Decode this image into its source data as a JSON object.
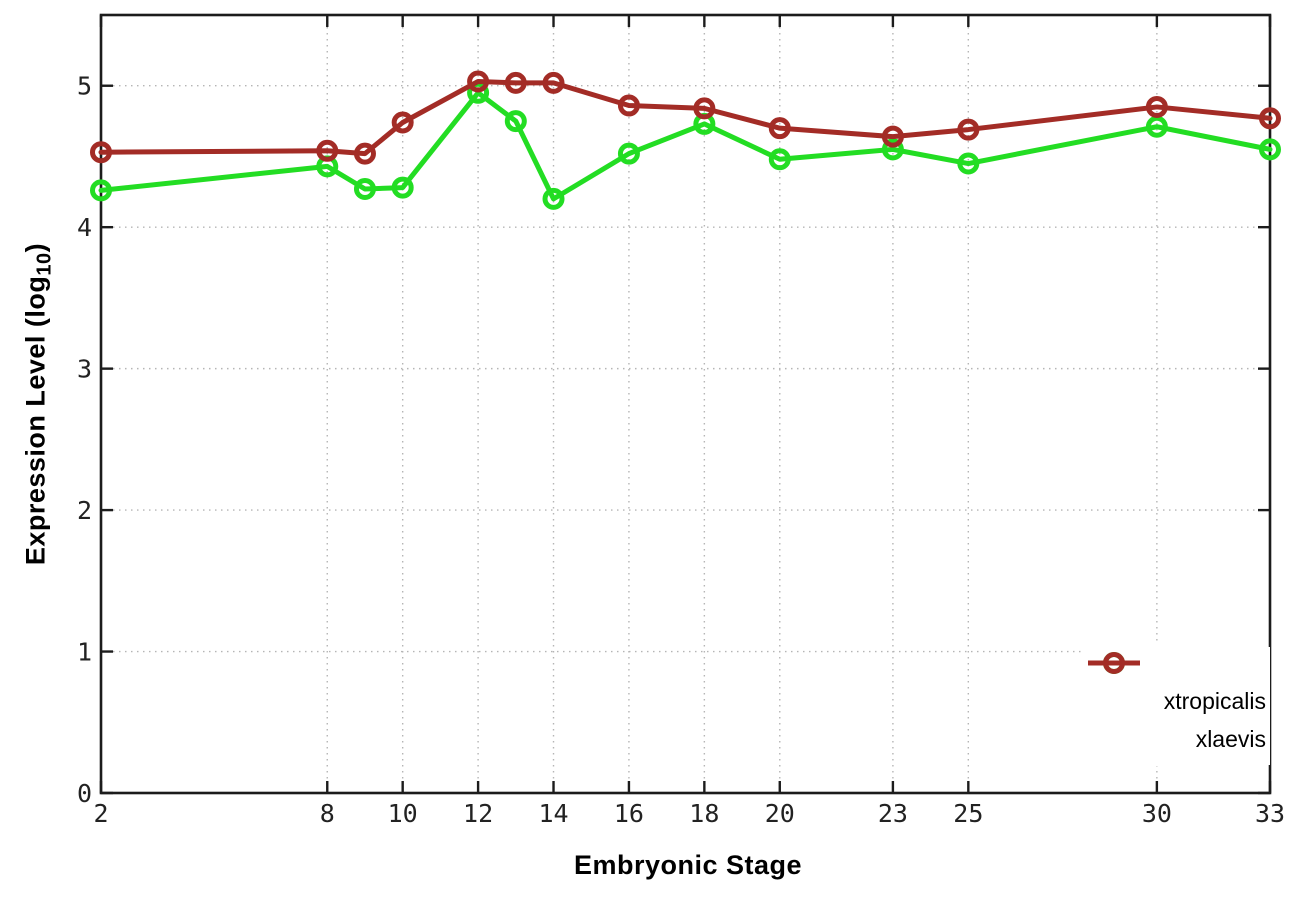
{
  "chart_data": {
    "type": "line",
    "title": "",
    "xlabel": "Embryonic Stage",
    "ylabel": {
      "prefix": "Expression Level (log",
      "sub": "10",
      "suffix": ")"
    },
    "x": [
      2,
      8,
      9,
      10,
      12,
      13,
      14,
      16,
      18,
      20,
      23,
      25,
      30,
      33
    ],
    "series": [
      {
        "name": "xtropicalis",
        "color": "#23dd23",
        "values": [
          4.26,
          4.43,
          4.27,
          4.28,
          4.95,
          4.75,
          4.2,
          4.52,
          4.73,
          4.48,
          4.55,
          4.45,
          4.71,
          4.55
        ]
      },
      {
        "name": "xlaevis",
        "color": "#a32c26",
        "values": [
          4.53,
          4.54,
          4.52,
          4.74,
          5.03,
          5.02,
          5.02,
          4.86,
          4.84,
          4.7,
          4.64,
          4.69,
          4.85,
          4.77
        ]
      }
    ],
    "x_ticks": [
      2,
      8,
      10,
      12,
      14,
      16,
      18,
      20,
      23,
      25,
      30,
      33
    ],
    "y_ticks": [
      0,
      1,
      2,
      3,
      4,
      5
    ],
    "xlim": [
      2,
      33
    ],
    "ylim": [
      0,
      5.5
    ],
    "grid": true,
    "legend_position": "bottom-right",
    "marker": "open-circle",
    "colors": {
      "border": "#1c1c1c",
      "gridline": "#b5b5b5",
      "tick_label": "#222222"
    }
  }
}
